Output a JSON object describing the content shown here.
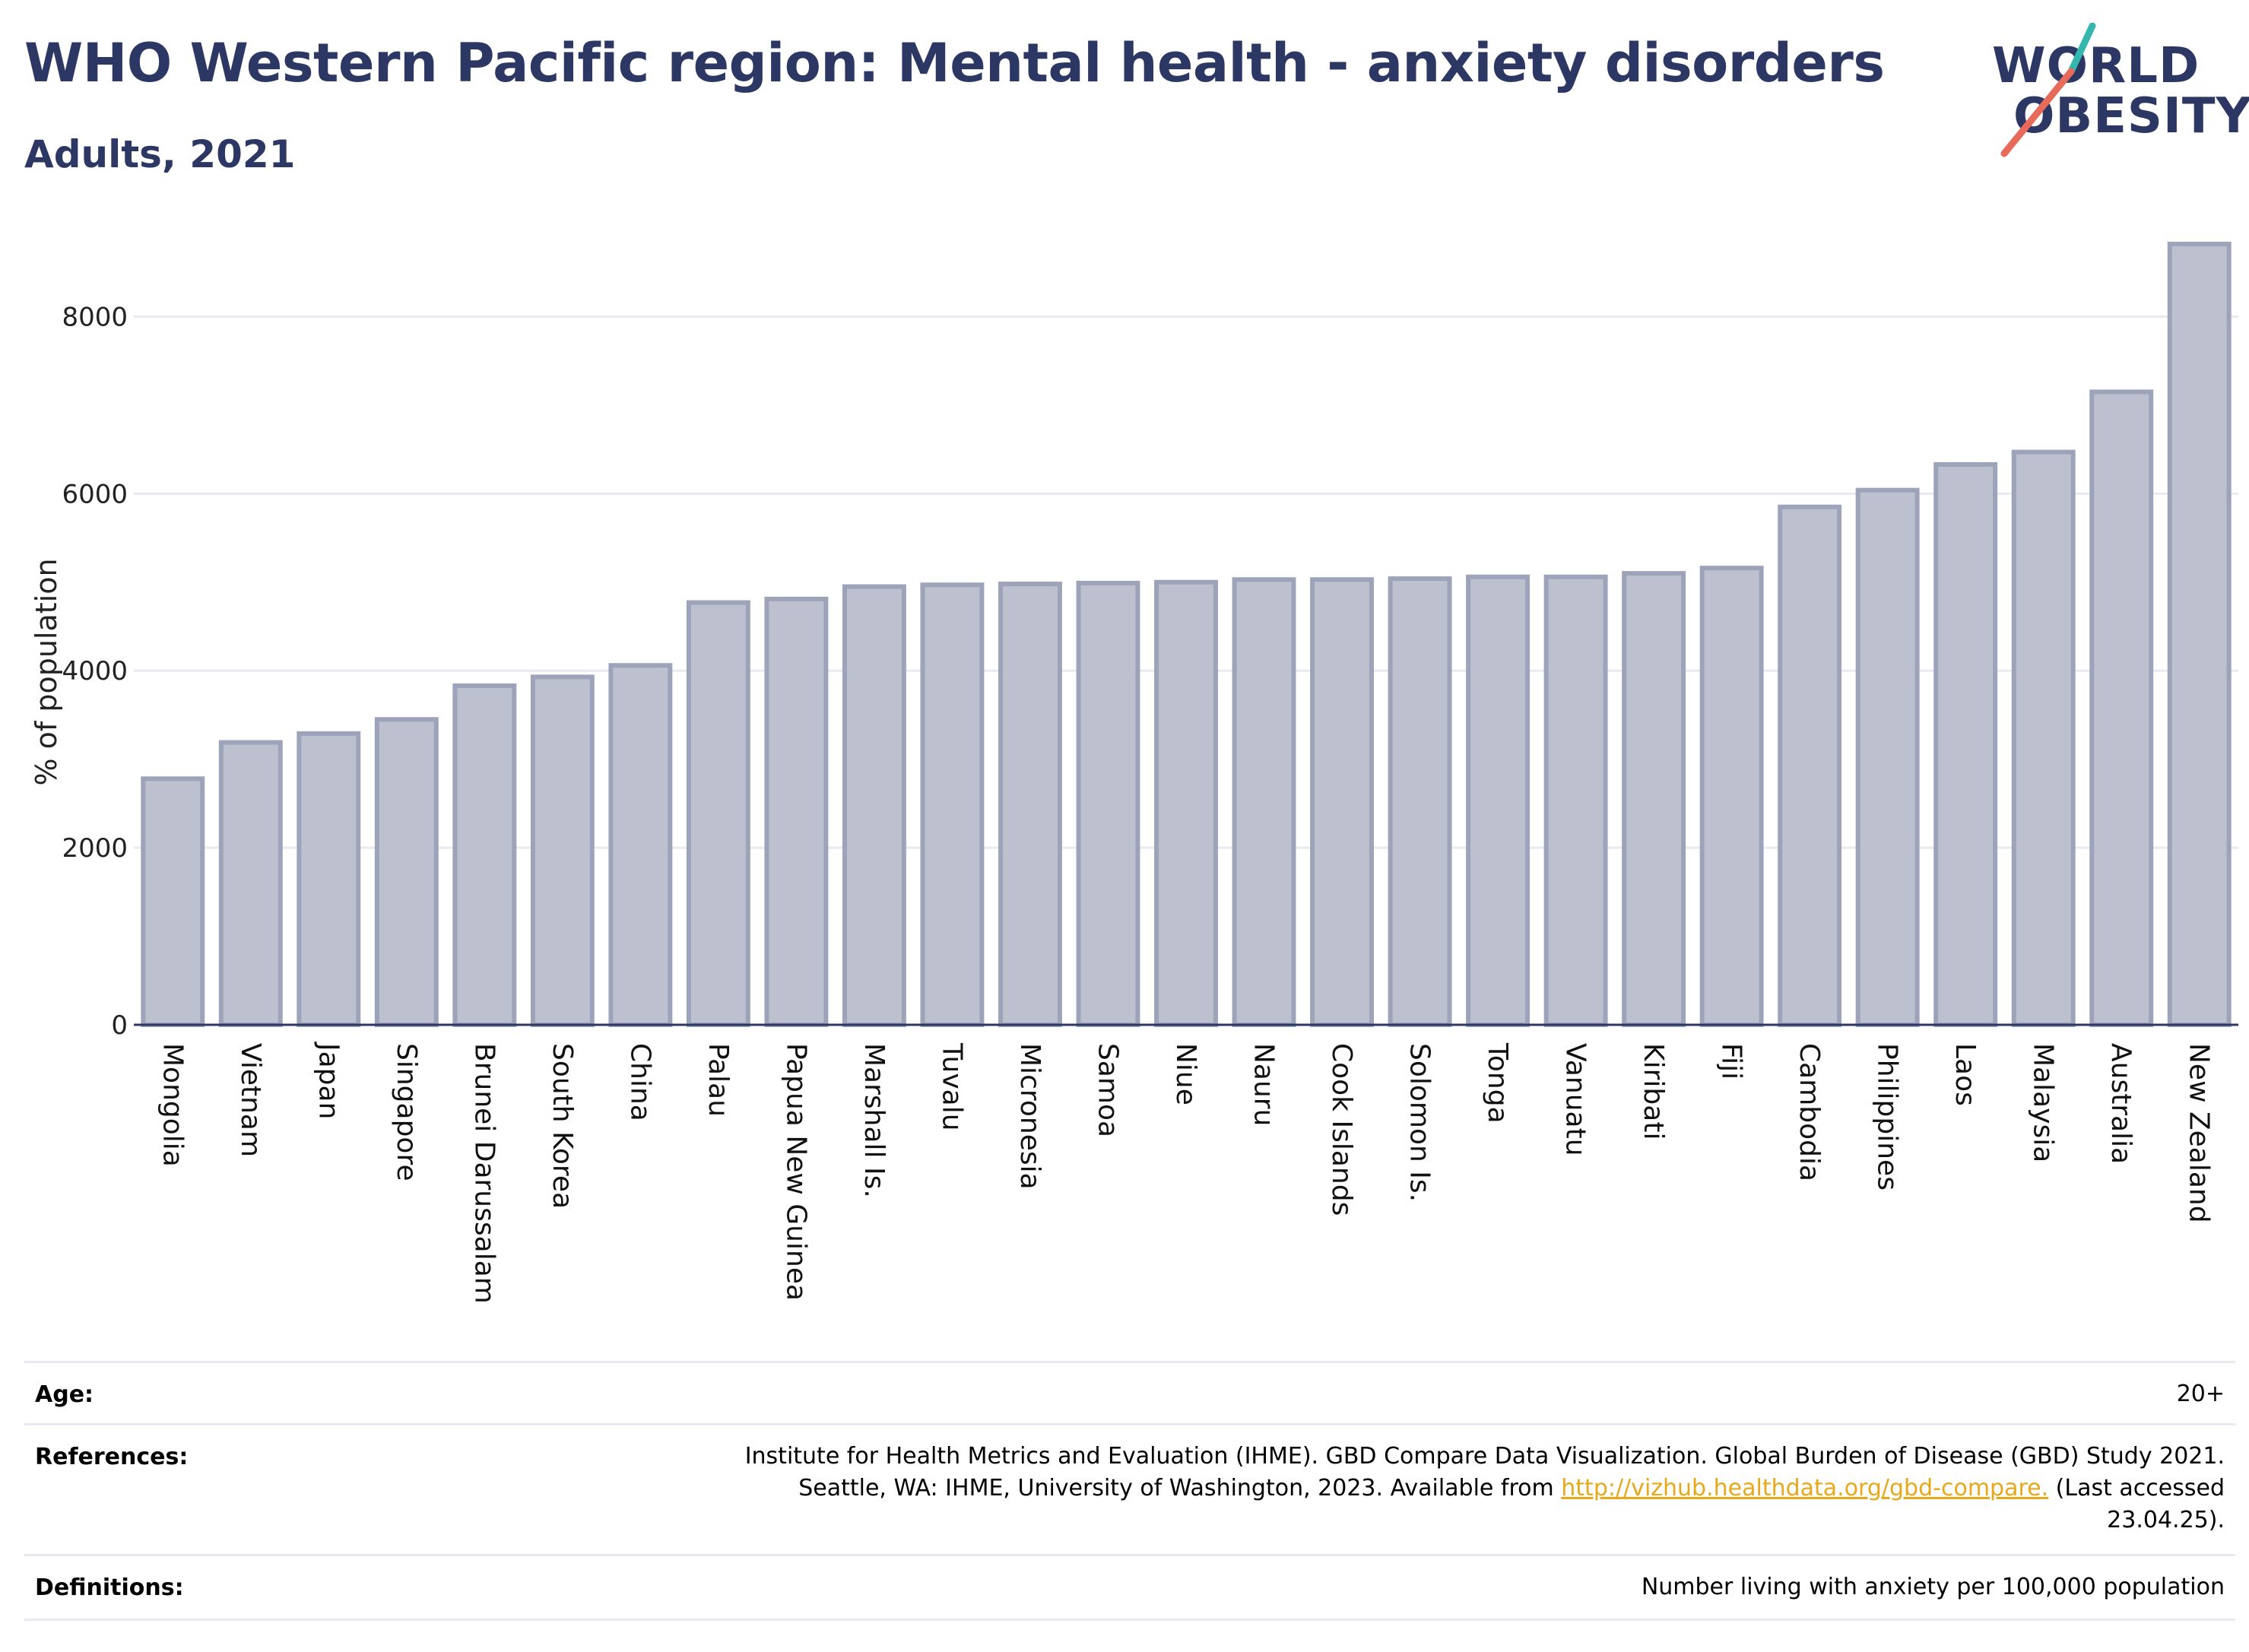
{
  "header": {
    "title": "WHO Western Pacific region: Mental health - anxiety disorders",
    "subtitle": "Adults, 2021"
  },
  "logo": {
    "line1": "WORLD",
    "line2": "OBESITY"
  },
  "chart_data": {
    "type": "bar",
    "title": "WHO Western Pacific region: Mental health - anxiety disorders",
    "subtitle": "Adults, 2021",
    "xlabel": "",
    "ylabel": "% of population",
    "ylim": [
      0,
      9000
    ],
    "yticks": [
      0,
      2000,
      4000,
      6000,
      8000
    ],
    "grid": true,
    "bar_color": "#bcc0cf",
    "bar_edge_color": "#9da3b9",
    "categories": [
      "Mongolia",
      "Vietnam",
      "Japan",
      "Singapore",
      "Brunei Darussalam",
      "South Korea",
      "China",
      "Palau",
      "Papua New Guinea",
      "Marshall Is.",
      "Tuvalu",
      "Micronesia",
      "Samoa",
      "Niue",
      "Nauru",
      "Cook Islands",
      "Solomon Is.",
      "Tonga",
      "Vanuatu",
      "Kiribati",
      "Fiji",
      "Cambodia",
      "Philippines",
      "Laos",
      "Malaysia",
      "Australia",
      "New Zealand"
    ],
    "values": [
      2780,
      3190,
      3290,
      3450,
      3830,
      3930,
      4060,
      4770,
      4810,
      4950,
      4970,
      4980,
      4990,
      5000,
      5030,
      5030,
      5040,
      5060,
      5060,
      5100,
      5160,
      5850,
      6040,
      6330,
      6470,
      7150,
      8820
    ]
  },
  "footer": {
    "age_label": "Age:",
    "age_value": "20+",
    "references_label": "References:",
    "references_line1": "Institute for Health Metrics and Evaluation (IHME). GBD Compare Data Visualization. Global Burden of Disease (GBD) Study 2021.",
    "references_line2_pre": "Seattle, WA: IHME, University of Washington, 2023. Available from ",
    "references_link": "http://vizhub.healthdata.org/gbd-compare.",
    "references_line2_post": " (Last accessed",
    "references_line3": "23.04.25).",
    "definitions_label": "Definitions:",
    "definitions_value": "Number living with anxiety per 100,000 population"
  },
  "colors": {
    "title": "#2c3764",
    "logo_teal": "#35b7ad",
    "logo_coral": "#e86a5a",
    "link": "#e8a81b"
  }
}
